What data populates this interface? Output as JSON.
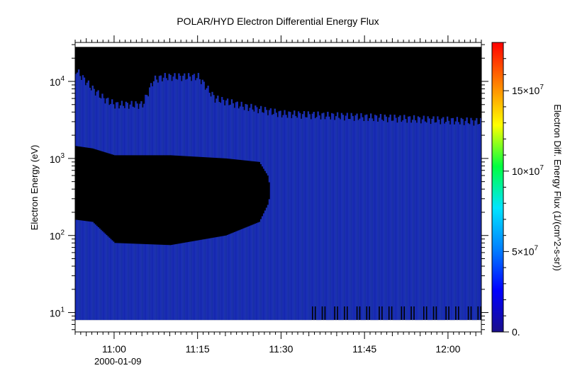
{
  "chart_data": {
    "type": "heatmap",
    "title": "POLAR/HYD  Electron Differential Energy Flux",
    "xlabel": "",
    "date_label": "2000-01-09",
    "ylabel": "Electron Energy (eV)",
    "yscale": "log",
    "ylim": [
      5.6,
      32000
    ],
    "xlim": [
      "10:53",
      "12:06"
    ],
    "x_ticks": [
      "11:00",
      "11:15",
      "11:30",
      "11:45",
      "12:00"
    ],
    "y_ticks": [
      {
        "base": "10",
        "exp": "1",
        "value": 10
      },
      {
        "base": "10",
        "exp": "2",
        "value": 100
      },
      {
        "base": "10",
        "exp": "3",
        "value": 1000
      },
      {
        "base": "10",
        "exp": "4",
        "value": 10000
      }
    ],
    "colorbar": {
      "label": "Electron Diff. Energy Flux (1/(cm^2-s-sr))",
      "range": [
        0,
        180000000
      ],
      "ticks": [
        {
          "value": 0,
          "label": "0.",
          "base": "",
          "exp": ""
        },
        {
          "value": 50000000,
          "label": "",
          "base": "5×10",
          "exp": "7"
        },
        {
          "value": 100000000,
          "label": "",
          "base": "10×10",
          "exp": "7"
        },
        {
          "value": 150000000,
          "label": "",
          "base": "15×10",
          "exp": "7"
        }
      ]
    },
    "colors": {
      "background_no_data": "#000000",
      "low_flux": "#1a2fb0",
      "colormap": [
        "#1a0f8a",
        "#0000ff",
        "#0080ff",
        "#00e5ff",
        "#00ff40",
        "#ffff00",
        "#ff8000",
        "#ff0000"
      ]
    },
    "data_coverage": {
      "energy_bounds_eV": [
        8,
        28000
      ],
      "upper_band_top_eV": [
        [
          "10:53",
          14000
        ],
        [
          "10:56",
          8000
        ],
        [
          "10:58",
          6000
        ],
        [
          "11:00",
          5000
        ],
        [
          "11:05",
          5000
        ],
        [
          "11:07",
          10500
        ],
        [
          "11:09",
          11500
        ],
        [
          "11:15",
          11500
        ],
        [
          "11:18",
          6000
        ],
        [
          "11:23",
          4800
        ],
        [
          "11:30",
          3800
        ],
        [
          "12:06",
          3000
        ]
      ],
      "dropout_gap_eV": [
        [
          "10:53",
          160,
          1450
        ],
        [
          "10:56",
          150,
          1350
        ],
        [
          "11:00",
          80,
          1100
        ],
        [
          "11:10",
          75,
          1100
        ],
        [
          "11:20",
          100,
          1000
        ],
        [
          "11:26",
          150,
          900
        ],
        [
          "11:27.5",
          250,
          600
        ],
        [
          "11:28",
          350,
          400
        ]
      ],
      "bottom_dropouts_start": "11:35"
    }
  }
}
